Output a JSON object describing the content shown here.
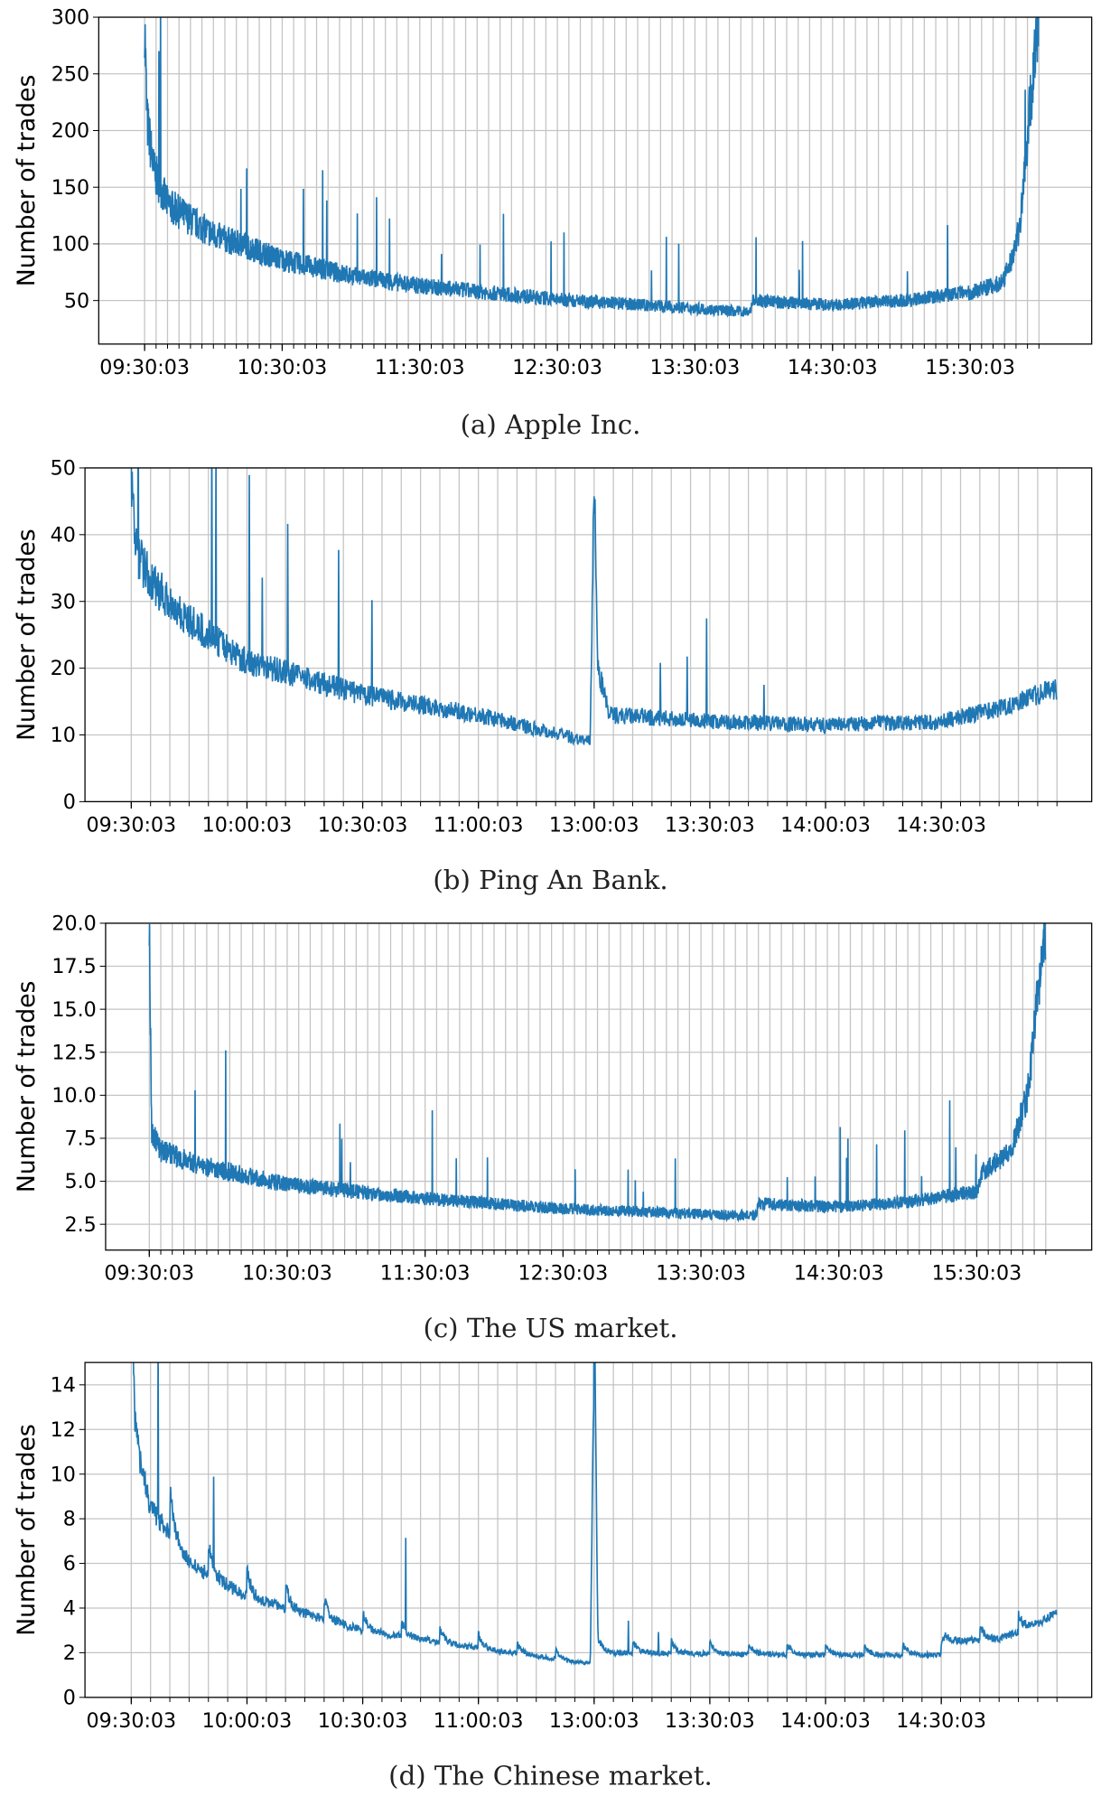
{
  "chart_data": [
    {
      "type": "line",
      "caption": "(a) Apple Inc.",
      "ylabel": "Number of trades",
      "ylim": [
        11.6,
        300
      ],
      "yticks": [
        50,
        100,
        150,
        200,
        250,
        300
      ],
      "ytick_labels": [
        "50",
        "100",
        "150",
        "200",
        "250",
        "300"
      ],
      "xtick_labels": [
        "09:30:03",
        "10:30:03",
        "11:30:03",
        "12:30:03",
        "13:30:03",
        "14:30:03",
        "15:30:03"
      ],
      "xtick_minutes": [
        0,
        60,
        120,
        180,
        240,
        300,
        360
      ],
      "x_unit": "minutes since 09:30:03",
      "x_range": [
        -20,
        413
      ],
      "grid": true,
      "color": "#1f77b4",
      "trend": [
        [
          0,
          300
        ],
        [
          1,
          210
        ],
        [
          4,
          165
        ],
        [
          10,
          135
        ],
        [
          30,
          108
        ],
        [
          60,
          86
        ],
        [
          90,
          72
        ],
        [
          120,
          63
        ],
        [
          180,
          51
        ],
        [
          240,
          43
        ],
        [
          264,
          40
        ],
        [
          265,
          50
        ],
        [
          300,
          46
        ],
        [
          330,
          50
        ],
        [
          360,
          57
        ],
        [
          374,
          66
        ],
        [
          378,
          85
        ],
        [
          382,
          120
        ],
        [
          386,
          220
        ],
        [
          390,
          300
        ]
      ],
      "noise": 0.12
    },
    {
      "type": "line",
      "caption": "(b) Ping An Bank.",
      "ylabel": "Number of trades",
      "ylim": [
        0,
        50
      ],
      "yticks": [
        0,
        10,
        20,
        30,
        40,
        50
      ],
      "ytick_labels": [
        "0",
        "10",
        "20",
        "30",
        "40",
        "50"
      ],
      "xtick_labels": [
        "09:30:03",
        "10:00:03",
        "10:30:03",
        "11:00:03",
        "13:00:03",
        "13:30:03",
        "14:00:03",
        "14:30:03"
      ],
      "xtick_minutes": [
        0,
        30,
        60,
        90,
        120,
        150,
        180,
        210
      ],
      "x_unit": "trading minutes since 09:30:03 (lunch break removed)",
      "x_range": [
        -12,
        249
      ],
      "grid": true,
      "color": "#1f77b4",
      "trend": [
        [
          0,
          50
        ],
        [
          1,
          38
        ],
        [
          5,
          33
        ],
        [
          15,
          27
        ],
        [
          30,
          21
        ],
        [
          60,
          16
        ],
        [
          90,
          13
        ],
        [
          119,
          9
        ],
        [
          120,
          50
        ],
        [
          121,
          20
        ],
        [
          124,
          13
        ],
        [
          150,
          12
        ],
        [
          180,
          11.5
        ],
        [
          210,
          12
        ],
        [
          225,
          14
        ],
        [
          240,
          17
        ]
      ],
      "noise": 0.1
    },
    {
      "type": "line",
      "caption": "(c) The US market.",
      "ylabel": "Number of trades",
      "ylim": [
        1.0,
        20.0
      ],
      "yticks": [
        2.5,
        5.0,
        7.5,
        10.0,
        12.5,
        15.0,
        17.5,
        20.0
      ],
      "ytick_labels": [
        "2.5",
        "5.0",
        "7.5",
        "10.0",
        "12.5",
        "15.0",
        "17.5",
        "20.0"
      ],
      "xtick_labels": [
        "09:30:03",
        "10:30:03",
        "11:30:03",
        "12:30:03",
        "13:30:03",
        "14:30:03",
        "15:30:03"
      ],
      "xtick_minutes": [
        0,
        60,
        120,
        180,
        240,
        300,
        360
      ],
      "x_unit": "minutes since 09:30:03",
      "x_range": [
        -19,
        410
      ],
      "grid": true,
      "color": "#1f77b4",
      "trend": [
        [
          0,
          20
        ],
        [
          1,
          8
        ],
        [
          5,
          6.8
        ],
        [
          20,
          6
        ],
        [
          60,
          4.8
        ],
        [
          120,
          4
        ],
        [
          180,
          3.4
        ],
        [
          240,
          3.1
        ],
        [
          264,
          3.0
        ],
        [
          265,
          3.7
        ],
        [
          300,
          3.5
        ],
        [
          330,
          3.8
        ],
        [
          360,
          4.4
        ],
        [
          362,
          5.5
        ],
        [
          375,
          6.8
        ],
        [
          382,
          10
        ],
        [
          386,
          15
        ],
        [
          390,
          20
        ]
      ],
      "noise": 0.1
    },
    {
      "type": "line",
      "caption": "(d) The Chinese market.",
      "ylabel": "Number of trades",
      "ylim": [
        0,
        15
      ],
      "yticks": [
        0,
        2,
        4,
        6,
        8,
        10,
        12,
        14
      ],
      "ytick_labels": [
        "0",
        "2",
        "4",
        "6",
        "8",
        "10",
        "12",
        "14"
      ],
      "xtick_labels": [
        "09:30:03",
        "10:00:03",
        "10:30:03",
        "11:00:03",
        "13:00:03",
        "13:30:03",
        "14:00:03",
        "14:30:03"
      ],
      "xtick_minutes": [
        0,
        30,
        60,
        90,
        120,
        150,
        180,
        210
      ],
      "x_unit": "trading minutes since 09:30:03 (lunch break removed)",
      "x_range": [
        -12,
        249
      ],
      "grid": true,
      "color": "#1f77b4",
      "trend": [
        [
          0,
          15
        ],
        [
          1,
          11
        ],
        [
          5,
          8.5
        ],
        [
          15,
          6
        ],
        [
          30,
          4.5
        ],
        [
          60,
          3
        ],
        [
          90,
          2.2
        ],
        [
          119,
          1.5
        ],
        [
          120,
          15
        ],
        [
          121,
          2.3
        ],
        [
          124,
          2.0
        ],
        [
          180,
          1.9
        ],
        [
          210,
          1.9
        ],
        [
          211,
          2.5
        ],
        [
          225,
          2.6
        ],
        [
          235,
          3.3
        ],
        [
          240,
          3.8
        ]
      ],
      "noise": 0.06,
      "sawtooth": true
    }
  ]
}
